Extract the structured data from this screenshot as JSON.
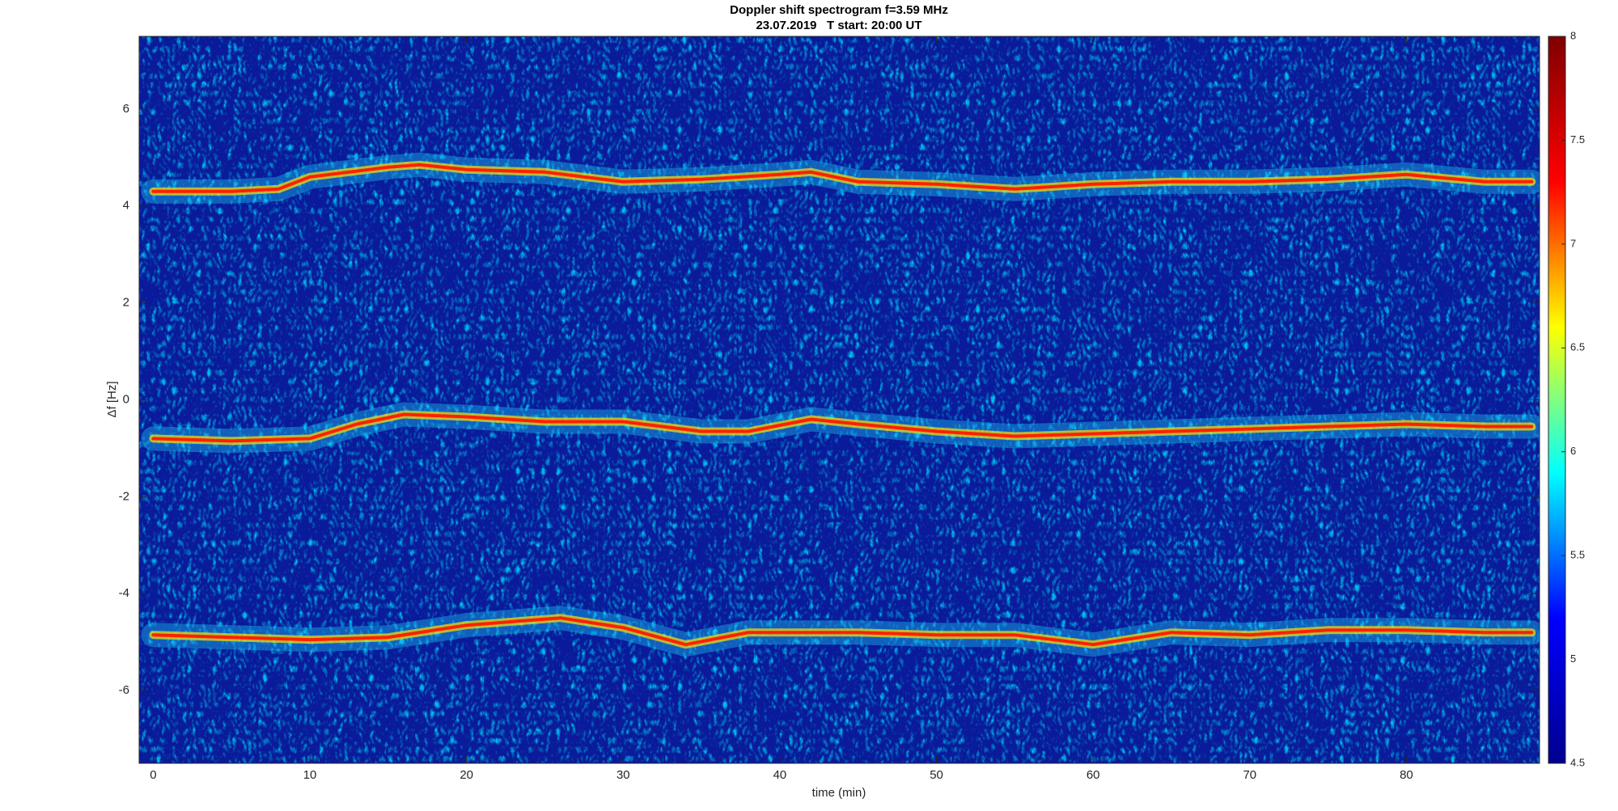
{
  "chart_data": {
    "type": "spectrogram",
    "title": "Doppler shift spectrogram f=3.59 MHz",
    "subtitle": "23.07.2019   T start: 20:00 UT",
    "xlabel": "time (min)",
    "ylabel": "Δf [Hz]",
    "xlim": [
      -0.9,
      88.5
    ],
    "xticks": [
      0,
      10,
      20,
      30,
      40,
      50,
      60,
      70,
      80
    ],
    "ylim": [
      -7.5,
      7.5
    ],
    "yticks": [
      -6,
      -4,
      -2,
      0,
      2,
      4,
      6
    ],
    "grid": false,
    "colorbar": {
      "colormap": "jet",
      "lim": [
        4.5,
        8
      ],
      "ticks": [
        4.5,
        5,
        5.5,
        6,
        6.5,
        7,
        7.5,
        8
      ]
    },
    "series": [
      {
        "color": "#ff2000",
        "x": [
          0,
          5,
          8,
          10,
          15,
          17,
          20,
          25,
          30,
          35,
          40,
          42,
          45,
          50,
          55,
          60,
          65,
          70,
          75,
          80,
          85,
          88
        ],
        "values": [
          4.3,
          4.3,
          4.35,
          4.6,
          4.8,
          4.85,
          4.75,
          4.7,
          4.5,
          4.55,
          4.65,
          4.7,
          4.5,
          4.45,
          4.35,
          4.45,
          4.5,
          4.5,
          4.55,
          4.65,
          4.5,
          4.5
        ]
      },
      {
        "color": "#ff2000",
        "x": [
          0,
          5,
          10,
          13,
          16,
          20,
          25,
          30,
          35,
          38,
          42,
          45,
          50,
          55,
          60,
          65,
          70,
          75,
          80,
          85,
          88
        ],
        "values": [
          -0.8,
          -0.85,
          -0.8,
          -0.5,
          -0.3,
          -0.35,
          -0.45,
          -0.45,
          -0.65,
          -0.65,
          -0.4,
          -0.5,
          -0.65,
          -0.75,
          -0.7,
          -0.65,
          -0.6,
          -0.55,
          -0.5,
          -0.55,
          -0.55
        ]
      },
      {
        "color": "#ff2000",
        "x": [
          0,
          5,
          10,
          15,
          20,
          26,
          30,
          34,
          38,
          45,
          50,
          55,
          60,
          65,
          70,
          75,
          80,
          85,
          88
        ],
        "values": [
          -4.85,
          -4.9,
          -4.95,
          -4.9,
          -4.65,
          -4.5,
          -4.7,
          -5.05,
          -4.8,
          -4.8,
          -4.85,
          -4.85,
          -5.05,
          -4.8,
          -4.85,
          -4.75,
          -4.75,
          -4.8,
          -4.8
        ]
      }
    ]
  }
}
